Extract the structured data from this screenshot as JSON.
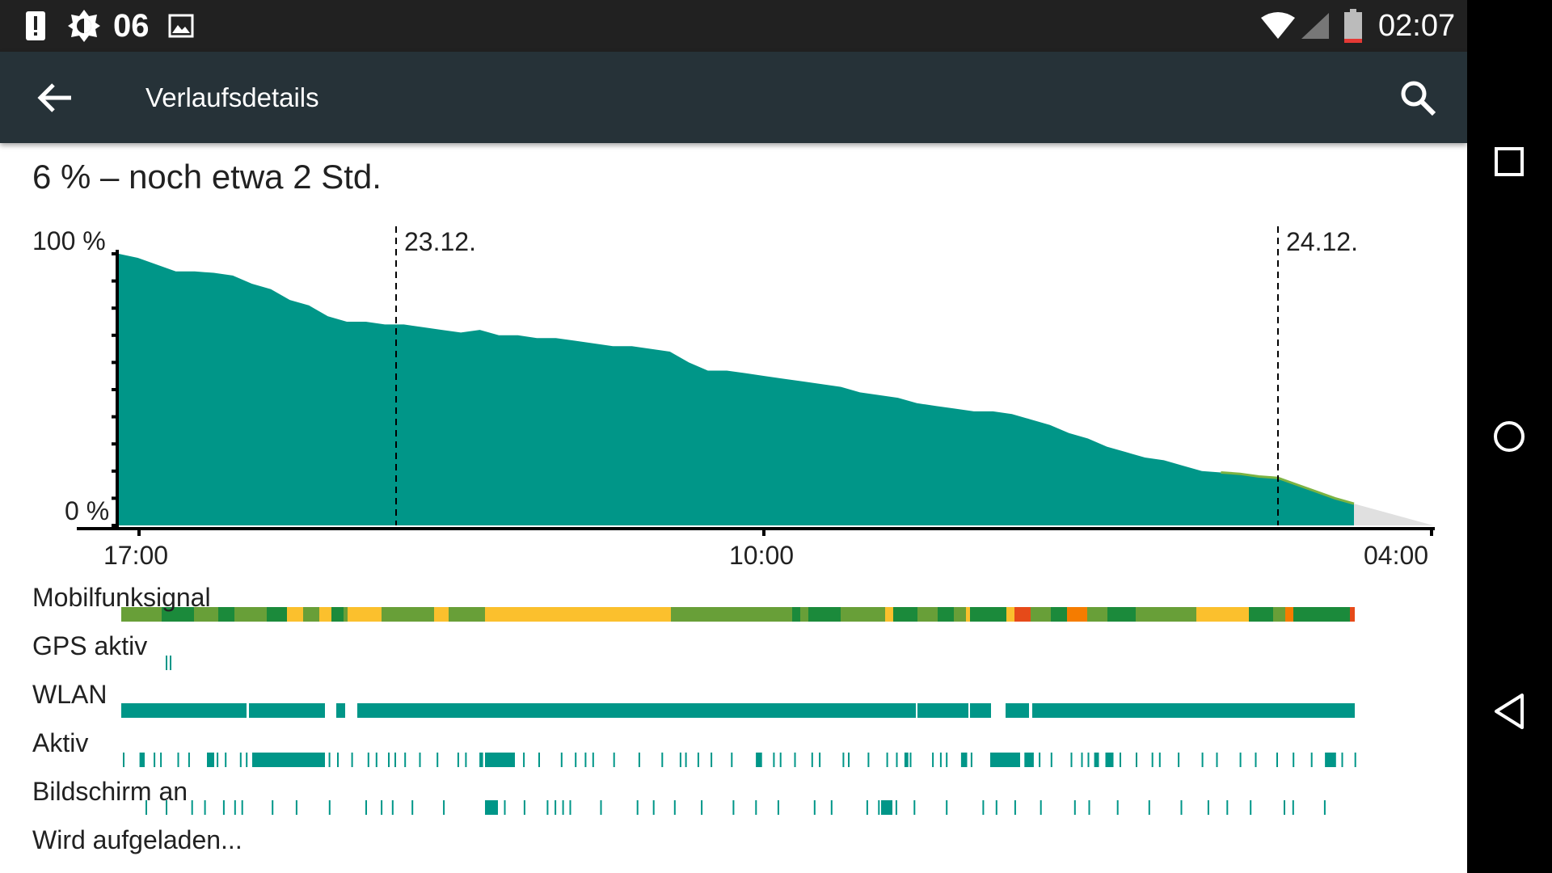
{
  "status_bar": {
    "notification_number": "06",
    "time": "02:07",
    "icons": [
      "alert-icon",
      "brightness-icon",
      "image-icon",
      "wifi-icon",
      "signal-icon",
      "battery-low-icon"
    ]
  },
  "app_bar": {
    "title": "Verlaufsdetails",
    "back_icon": "arrow-back-icon",
    "search_icon": "search-icon"
  },
  "summary": "6 % – noch etwa 2 Std.",
  "chart_data": {
    "type": "area",
    "title": "",
    "y_tick_labels": [
      "100 %",
      "0 %"
    ],
    "ylim": [
      0,
      100
    ],
    "x_tick_labels": [
      "17:00",
      "10:00",
      "04:00"
    ],
    "day_markers": [
      "23.12.",
      "24.12."
    ],
    "series": [
      {
        "values": [
          100,
          98.5,
          96,
          93.5,
          93.5,
          93,
          92,
          89,
          87,
          83,
          81,
          77,
          75,
          75,
          74,
          74,
          73,
          72,
          71,
          72,
          70,
          70,
          69,
          69,
          68,
          67,
          66,
          66,
          65,
          64,
          60,
          57,
          57,
          56,
          55,
          54,
          53,
          52,
          51,
          49,
          48,
          47,
          45,
          44,
          43,
          42,
          42,
          41,
          39,
          37,
          34,
          32,
          29,
          27,
          25,
          24,
          22,
          20,
          19.5,
          19,
          18,
          17.5,
          15,
          12.5,
          10,
          8
        ],
        "color": "#009688"
      }
    ],
    "projection_color": "#e0e0e0",
    "ticks": 10
  },
  "tracks": [
    {
      "label": "Mobilfunksignal"
    },
    {
      "label": "GPS aktiv"
    },
    {
      "label": "WLAN"
    },
    {
      "label": "Aktiv"
    },
    {
      "label": "Bildschirm an"
    },
    {
      "label": "Wird aufgeladen..."
    }
  ],
  "colors": {
    "teal": "#009688",
    "signal_dark": "#1b8a3b",
    "signal_mid": "#689f38",
    "signal_yellow": "#fbc02d",
    "signal_orange": "#f57c00",
    "signal_red": "#e64a19"
  },
  "nav": {
    "recents_icon": "square-recents-icon",
    "home_icon": "circle-home-icon",
    "back_icon": "triangle-back-icon"
  }
}
